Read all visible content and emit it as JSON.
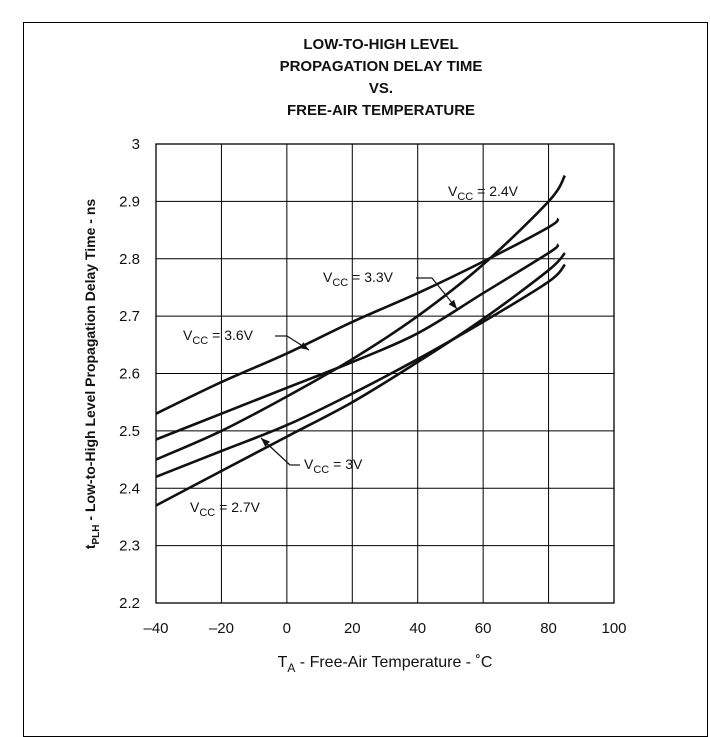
{
  "chart_data": {
    "type": "line",
    "title_lines": [
      "LOW-TO-HIGH LEVEL",
      "PROPAGATION DELAY TIME",
      "VS.",
      "FREE-AIR TEMPERATURE"
    ],
    "xlabel": {
      "main": "T",
      "sub": "A",
      "rest": " - Free-Air Temperature - ˚C"
    },
    "ylabel": {
      "main": "t",
      "sub": "PLH",
      "rest": " - Low-to-High Level Propagation Delay Time - ns"
    },
    "xlim": [
      -40,
      100
    ],
    "ylim": [
      2.2,
      3.0
    ],
    "x_ticks": [
      -40,
      -20,
      0,
      20,
      40,
      60,
      80,
      100
    ],
    "x_tick_labels": [
      "–40",
      "–20",
      "0",
      "20",
      "40",
      "60",
      "80",
      "100"
    ],
    "y_ticks": [
      2.2,
      2.3,
      2.4,
      2.5,
      2.6,
      2.7,
      2.8,
      2.9,
      3.0
    ],
    "y_tick_labels": [
      "2.2",
      "2.3",
      "2.4",
      "2.5",
      "2.6",
      "2.7",
      "2.8",
      "2.9",
      "3"
    ],
    "grid": true,
    "series": [
      {
        "name": "VCC = 2.4V",
        "label": {
          "main": "V",
          "sub": "CC",
          "rest": " = 2.4V"
        },
        "x": [
          -40,
          -20,
          0,
          20,
          40,
          60,
          80,
          85
        ],
        "y": [
          2.45,
          2.5,
          2.56,
          2.625,
          2.7,
          2.79,
          2.9,
          2.945
        ]
      },
      {
        "name": "VCC = 3.3V",
        "label": {
          "main": "V",
          "sub": "CC",
          "rest": " = 3.3V"
        },
        "x": [
          -40,
          -20,
          0,
          20,
          40,
          60,
          80,
          83
        ],
        "y": [
          2.485,
          2.53,
          2.575,
          2.62,
          2.67,
          2.74,
          2.81,
          2.825
        ]
      },
      {
        "name": "VCC = 3.6V",
        "label": {
          "main": "V",
          "sub": "CC",
          "rest": " = 3.6V"
        },
        "x": [
          -40,
          -20,
          0,
          20,
          40,
          60,
          80,
          83
        ],
        "y": [
          2.53,
          2.585,
          2.635,
          2.69,
          2.74,
          2.795,
          2.855,
          2.87
        ]
      },
      {
        "name": "VCC = 3V",
        "label": {
          "main": "V",
          "sub": "CC",
          "rest": " = 3V"
        },
        "x": [
          -40,
          -20,
          0,
          20,
          40,
          60,
          80,
          85
        ],
        "y": [
          2.42,
          2.465,
          2.51,
          2.565,
          2.625,
          2.69,
          2.76,
          2.79
        ]
      },
      {
        "name": "VCC = 2.7V",
        "label": {
          "main": "V",
          "sub": "CC",
          "rest": " = 2.7V"
        },
        "x": [
          -40,
          -20,
          0,
          20,
          40,
          60,
          80,
          85
        ],
        "y": [
          2.37,
          2.43,
          2.49,
          2.55,
          2.62,
          2.695,
          2.78,
          2.81
        ]
      }
    ]
  }
}
